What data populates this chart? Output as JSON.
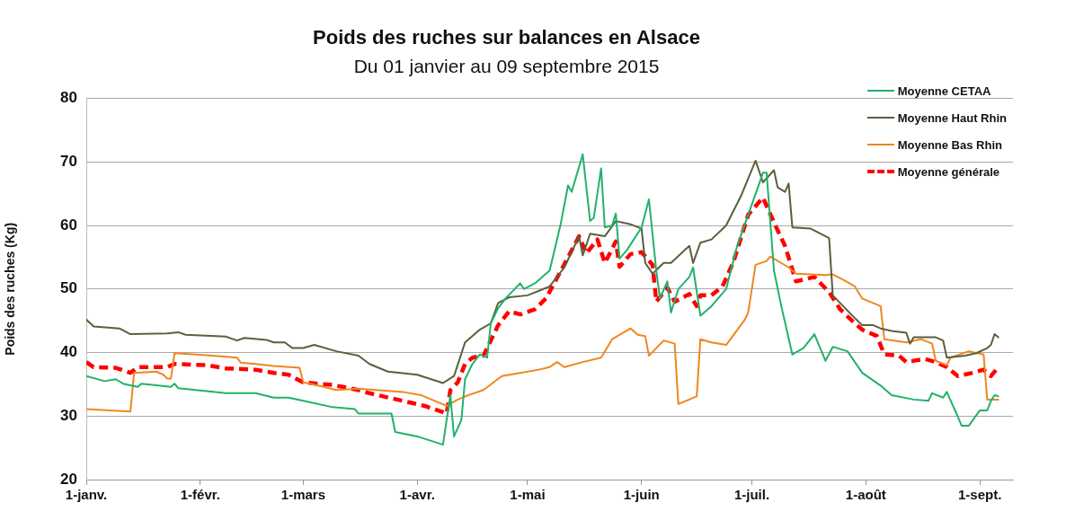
{
  "chart_data": {
    "type": "line",
    "title": "Poids des ruches sur balances en Alsace",
    "subtitle": "Du 01 janvier au 09 septembre 2015",
    "ylabel": "Poids des ruches (Kg)",
    "xlim": [
      "2015-01-01",
      "2015-09-10"
    ],
    "xticks": [
      {
        "value": "2015-01-01",
        "label": "1-janv."
      },
      {
        "value": "2015-02-01",
        "label": "1-févr."
      },
      {
        "value": "2015-03-01",
        "label": "1-mars"
      },
      {
        "value": "2015-04-01",
        "label": "1-avr."
      },
      {
        "value": "2015-05-01",
        "label": "1-mai"
      },
      {
        "value": "2015-06-01",
        "label": "1-juin"
      },
      {
        "value": "2015-07-01",
        "label": "1-juil."
      },
      {
        "value": "2015-08-01",
        "label": "1-août"
      },
      {
        "value": "2015-09-01",
        "label": "1-sept."
      }
    ],
    "ylim": [
      20,
      80
    ],
    "yticks": [
      20,
      30,
      40,
      50,
      60,
      70,
      80
    ],
    "grid": "y",
    "legend": "top right",
    "marker": "none",
    "series": [
      {
        "name": "Moyenne CETAA",
        "color": "#20b26b",
        "line_style": "solid",
        "x": [
          "2015-01-01",
          "2015-01-06",
          "2015-01-09",
          "2015-01-11",
          "2015-01-15",
          "2015-01-16",
          "2015-01-24",
          "2015-01-25",
          "2015-01-26",
          "2015-02-08",
          "2015-02-16",
          "2015-02-21",
          "2015-02-25",
          "2015-03-01",
          "2015-03-09",
          "2015-03-15",
          "2015-03-16",
          "2015-03-25",
          "2015-03-26",
          "2015-04-01",
          "2015-04-08",
          "2015-04-10",
          "2015-04-11",
          "2015-04-13",
          "2015-04-14",
          "2015-04-16",
          "2015-04-18",
          "2015-04-20",
          "2015-04-21",
          "2015-04-23",
          "2015-04-25",
          "2015-04-27",
          "2015-04-29",
          "2015-04-30",
          "2015-05-03",
          "2015-05-07",
          "2015-05-10",
          "2015-05-12",
          "2015-05-13",
          "2015-05-16",
          "2015-05-18",
          "2015-05-19",
          "2015-05-21",
          "2015-05-22",
          "2015-05-24",
          "2015-05-25",
          "2015-05-26",
          "2015-05-28",
          "2015-06-01",
          "2015-06-03",
          "2015-06-05",
          "2015-06-06",
          "2015-06-08",
          "2015-06-09",
          "2015-06-11",
          "2015-06-14",
          "2015-06-15",
          "2015-06-17",
          "2015-06-20",
          "2015-06-24",
          "2015-06-27",
          "2015-06-30",
          "2015-07-03",
          "2015-07-04",
          "2015-07-05",
          "2015-07-07",
          "2015-07-09",
          "2015-07-12",
          "2015-07-15",
          "2015-07-18",
          "2015-07-21",
          "2015-07-23",
          "2015-07-27",
          "2015-07-31",
          "2015-08-05",
          "2015-08-08",
          "2015-08-14",
          "2015-08-18",
          "2015-08-19",
          "2015-08-22",
          "2015-08-23",
          "2015-08-26",
          "2015-08-27",
          "2015-08-29",
          "2015-09-01",
          "2015-09-03",
          "2015-09-04",
          "2015-09-05",
          "2015-09-06"
        ],
        "values": [
          36.3,
          35.5,
          35.8,
          35.1,
          34.6,
          35.1,
          34.6,
          35.1,
          34.4,
          33.6,
          33.6,
          32.9,
          32.9,
          32.4,
          31.4,
          31.1,
          30.4,
          30.4,
          27.5,
          26.8,
          25.5,
          33.3,
          26.8,
          29.4,
          35.8,
          38.2,
          39.7,
          39.2,
          44.6,
          47.0,
          48.5,
          49.7,
          50.9,
          50.0,
          50.9,
          52.9,
          60.2,
          66.3,
          65.3,
          71.2,
          60.7,
          61.2,
          69.0,
          59.7,
          60.0,
          61.9,
          54.8,
          56.1,
          59.7,
          64.1,
          52.9,
          48.5,
          51.2,
          46.3,
          50.0,
          51.9,
          53.4,
          45.8,
          47.3,
          50.0,
          56.8,
          61.7,
          66.6,
          68.3,
          68.3,
          52.9,
          47.3,
          39.7,
          40.7,
          42.9,
          38.7,
          40.9,
          40.2,
          36.8,
          34.8,
          33.3,
          32.6,
          32.4,
          33.6,
          32.9,
          33.8,
          29.9,
          28.5,
          28.5,
          30.9,
          30.9,
          32.4,
          33.3,
          33.1
        ]
      },
      {
        "name": "Moyenne Haut Rhin",
        "color": "#5a5f3c",
        "line_style": "solid",
        "x": [
          "2015-01-01",
          "2015-01-03",
          "2015-01-10",
          "2015-01-13",
          "2015-01-23",
          "2015-01-26",
          "2015-01-28",
          "2015-02-08",
          "2015-02-11",
          "2015-02-13",
          "2015-02-19",
          "2015-02-21",
          "2015-02-24",
          "2015-02-26",
          "2015-03-01",
          "2015-03-04",
          "2015-03-10",
          "2015-03-16",
          "2015-03-19",
          "2015-03-24",
          "2015-04-01",
          "2015-04-08",
          "2015-04-11",
          "2015-04-14",
          "2015-04-18",
          "2015-04-21",
          "2015-04-23",
          "2015-04-26",
          "2015-05-01",
          "2015-05-07",
          "2015-05-11",
          "2015-05-15",
          "2015-05-16",
          "2015-05-18",
          "2015-05-22",
          "2015-05-25",
          "2015-05-29",
          "2015-06-01",
          "2015-06-02",
          "2015-06-04",
          "2015-06-07",
          "2015-06-09",
          "2015-06-14",
          "2015-06-15",
          "2015-06-17",
          "2015-06-20",
          "2015-06-24",
          "2015-06-28",
          "2015-07-02",
          "2015-07-04",
          "2015-07-07",
          "2015-07-08",
          "2015-07-10",
          "2015-07-11",
          "2015-07-12",
          "2015-07-17",
          "2015-07-22",
          "2015-07-23",
          "2015-07-28",
          "2015-07-31",
          "2015-08-03",
          "2015-08-05",
          "2015-08-08",
          "2015-08-12",
          "2015-08-13",
          "2015-08-14",
          "2015-08-20",
          "2015-08-22",
          "2015-08-23",
          "2015-08-28",
          "2015-08-31",
          "2015-09-03",
          "2015-09-04",
          "2015-09-05",
          "2015-09-06"
        ],
        "values": [
          45.2,
          44.1,
          43.8,
          42.9,
          43.0,
          43.2,
          42.8,
          42.5,
          41.9,
          42.3,
          42.0,
          41.6,
          41.6,
          40.7,
          40.7,
          41.2,
          40.2,
          39.5,
          38.2,
          37.0,
          36.5,
          35.2,
          36.3,
          41.6,
          43.6,
          44.6,
          47.8,
          48.7,
          49.0,
          50.4,
          53.4,
          58.3,
          55.3,
          58.7,
          58.3,
          60.7,
          60.2,
          59.5,
          54.1,
          52.4,
          54.1,
          54.1,
          56.8,
          54.1,
          57.3,
          57.8,
          60.0,
          64.6,
          70.2,
          66.8,
          68.7,
          66.0,
          65.3,
          66.6,
          59.7,
          59.5,
          58.0,
          49.0,
          46.0,
          44.3,
          44.3,
          43.8,
          43.4,
          43.1,
          41.4,
          42.4,
          42.4,
          41.9,
          39.2,
          39.5,
          39.9,
          40.7,
          41.2,
          42.9,
          42.4
        ]
      },
      {
        "name": "Moyenne Bas Rhin",
        "color": "#f0861e",
        "line_style": "solid",
        "x": [
          "2015-01-01",
          "2015-01-13",
          "2015-01-14",
          "2015-01-20",
          "2015-01-22",
          "2015-01-23",
          "2015-01-24",
          "2015-01-25",
          "2015-01-31",
          "2015-02-11",
          "2015-02-12",
          "2015-02-16",
          "2015-02-21",
          "2015-02-28",
          "2015-03-01",
          "2015-03-05",
          "2015-03-10",
          "2015-03-16",
          "2015-03-28",
          "2015-04-02",
          "2015-04-09",
          "2015-04-12",
          "2015-04-15",
          "2015-04-19",
          "2015-04-24",
          "2015-04-29",
          "2015-05-04",
          "2015-05-07",
          "2015-05-09",
          "2015-05-11",
          "2015-05-16",
          "2015-05-21",
          "2015-05-24",
          "2015-05-29",
          "2015-05-31",
          "2015-06-02",
          "2015-06-03",
          "2015-06-07",
          "2015-06-10",
          "2015-06-11",
          "2015-06-16",
          "2015-06-17",
          "2015-06-20",
          "2015-06-24",
          "2015-06-29",
          "2015-06-30",
          "2015-07-02",
          "2015-07-05",
          "2015-07-06",
          "2015-07-11",
          "2015-07-13",
          "2015-07-21",
          "2015-07-23",
          "2015-07-26",
          "2015-07-29",
          "2015-07-31",
          "2015-08-05",
          "2015-08-06",
          "2015-08-12",
          "2015-08-16",
          "2015-08-19",
          "2015-08-20",
          "2015-08-23",
          "2015-08-24",
          "2015-08-29",
          "2015-09-02",
          "2015-09-03",
          "2015-09-06"
        ],
        "values": [
          31.1,
          30.7,
          36.8,
          37.0,
          36.5,
          35.9,
          35.9,
          39.9,
          39.7,
          39.2,
          38.4,
          38.2,
          37.9,
          37.6,
          35.3,
          34.8,
          34.1,
          34.3,
          33.8,
          33.3,
          31.6,
          32.6,
          33.3,
          34.1,
          36.3,
          36.8,
          37.3,
          37.7,
          38.5,
          37.7,
          38.5,
          39.2,
          42.1,
          43.8,
          42.8,
          42.6,
          39.5,
          41.9,
          41.4,
          31.9,
          33.1,
          42.1,
          41.6,
          41.2,
          45.1,
          46.3,
          53.8,
          54.4,
          55.1,
          53.4,
          52.4,
          52.2,
          52.3,
          51.4,
          50.4,
          48.5,
          47.3,
          42.1,
          41.6,
          42.1,
          41.4,
          38.7,
          38.0,
          39.2,
          40.2,
          39.7,
          32.6,
          32.6
        ]
      },
      {
        "name": "Moyenne générale",
        "color": "#ff0000",
        "line_style": "dashed",
        "x": [
          "2015-01-01",
          "2015-01-03",
          "2015-01-09",
          "2015-01-13",
          "2015-01-15",
          "2015-01-23",
          "2015-01-25",
          "2015-02-03",
          "2015-02-08",
          "2015-02-16",
          "2015-02-21",
          "2015-02-25",
          "2015-03-01",
          "2015-03-09",
          "2015-03-16",
          "2015-03-19",
          "2015-03-28",
          "2015-04-03",
          "2015-04-09",
          "2015-04-10",
          "2015-04-12",
          "2015-04-14",
          "2015-04-16",
          "2015-04-19",
          "2015-04-20",
          "2015-04-23",
          "2015-04-26",
          "2015-04-29",
          "2015-05-03",
          "2015-05-06",
          "2015-05-11",
          "2015-05-15",
          "2015-05-17",
          "2015-05-20",
          "2015-05-22",
          "2015-05-24",
          "2015-05-25",
          "2015-05-26",
          "2015-05-29",
          "2015-06-01",
          "2015-06-04",
          "2015-06-05",
          "2015-06-08",
          "2015-06-10",
          "2015-06-14",
          "2015-06-16",
          "2015-06-17",
          "2015-06-20",
          "2015-06-23",
          "2015-06-26",
          "2015-06-30",
          "2015-07-04",
          "2015-07-07",
          "2015-07-10",
          "2015-07-13",
          "2015-07-18",
          "2015-07-22",
          "2015-07-25",
          "2015-07-29",
          "2015-07-31",
          "2015-08-04",
          "2015-08-06",
          "2015-08-10",
          "2015-08-12",
          "2015-08-17",
          "2015-08-20",
          "2015-08-23",
          "2015-08-26",
          "2015-08-30",
          "2015-09-02",
          "2015-09-04",
          "2015-09-06"
        ],
        "values": [
          38.5,
          37.7,
          37.6,
          36.8,
          37.7,
          37.7,
          38.2,
          38.0,
          37.5,
          37.3,
          36.8,
          36.5,
          35.3,
          34.9,
          34.1,
          33.6,
          32.4,
          31.6,
          30.4,
          34.1,
          35.3,
          38.2,
          39.2,
          39.5,
          40.7,
          44.3,
          46.5,
          46.0,
          46.8,
          48.5,
          53.9,
          58.3,
          55.6,
          57.8,
          54.1,
          56.3,
          57.5,
          53.5,
          55.5,
          55.8,
          53.8,
          48.0,
          50.2,
          48.0,
          49.2,
          47.3,
          49.0,
          49.0,
          50.4,
          54.3,
          61.7,
          64.4,
          60.5,
          56.8,
          51.2,
          51.9,
          49.5,
          46.8,
          44.6,
          43.6,
          42.6,
          39.7,
          39.5,
          38.5,
          39.0,
          38.5,
          37.7,
          36.3,
          36.8,
          37.3,
          36.3,
          37.7
        ]
      }
    ]
  }
}
